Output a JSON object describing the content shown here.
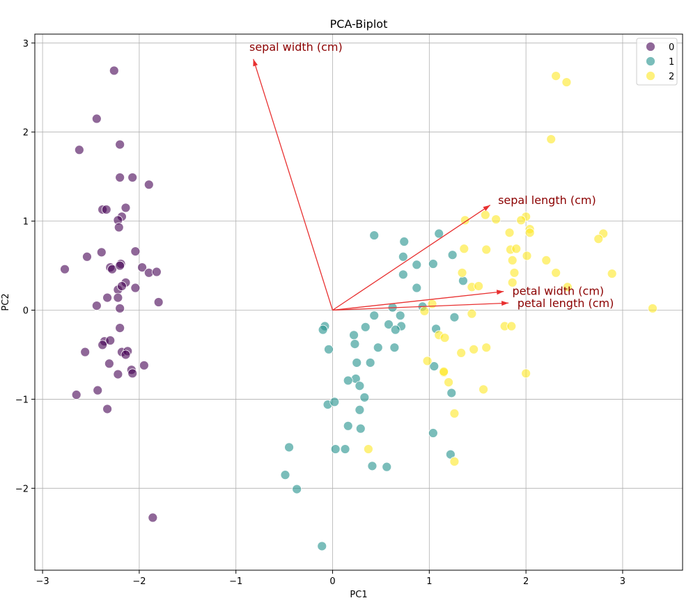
{
  "chart_data": {
    "type": "scatter",
    "title": "PCA-Biplot",
    "xlabel": "PC1",
    "ylabel": "PC2",
    "xlim": [
      -3.08,
      3.62
    ],
    "ylim": [
      -2.92,
      3.1
    ],
    "xticks": [
      -3,
      -2,
      -1,
      0,
      1,
      2,
      3
    ],
    "yticks": [
      -2,
      -1,
      0,
      1,
      2,
      3
    ],
    "grid": true,
    "legend_position": "top-right",
    "colors": {
      "arrow": "#e83030",
      "arrow_label": "#8b0000",
      "grid": "#b0b0b0"
    },
    "series": [
      {
        "name": "0",
        "color": "#440154",
        "points": [
          [
            -2.26,
            2.69
          ],
          [
            -2.44,
            2.15
          ],
          [
            -2.62,
            1.8
          ],
          [
            -2.2,
            1.86
          ],
          [
            -2.2,
            1.49
          ],
          [
            -2.07,
            1.49
          ],
          [
            -1.9,
            1.41
          ],
          [
            -2.38,
            1.13
          ],
          [
            -2.34,
            1.13
          ],
          [
            -2.14,
            1.15
          ],
          [
            -2.18,
            1.05
          ],
          [
            -2.22,
            1.01
          ],
          [
            -2.21,
            0.93
          ],
          [
            -2.04,
            0.66
          ],
          [
            -2.39,
            0.65
          ],
          [
            -2.54,
            0.6
          ],
          [
            -2.77,
            0.46
          ],
          [
            -2.3,
            0.48
          ],
          [
            -2.28,
            0.46
          ],
          [
            -2.19,
            0.52
          ],
          [
            -2.2,
            0.5
          ],
          [
            -1.97,
            0.48
          ],
          [
            -1.9,
            0.42
          ],
          [
            -1.82,
            0.43
          ],
          [
            -2.14,
            0.31
          ],
          [
            -2.22,
            0.23
          ],
          [
            -2.18,
            0.27
          ],
          [
            -2.04,
            0.25
          ],
          [
            -2.22,
            0.14
          ],
          [
            -2.33,
            0.14
          ],
          [
            -1.8,
            0.09
          ],
          [
            -2.44,
            0.05
          ],
          [
            -2.2,
            0.02
          ],
          [
            -2.2,
            -0.2
          ],
          [
            -2.36,
            -0.35
          ],
          [
            -2.3,
            -0.34
          ],
          [
            -2.38,
            -0.39
          ],
          [
            -2.56,
            -0.47
          ],
          [
            -2.18,
            -0.47
          ],
          [
            -2.12,
            -0.46
          ],
          [
            -2.14,
            -0.5
          ],
          [
            -1.95,
            -0.62
          ],
          [
            -2.31,
            -0.6
          ],
          [
            -2.08,
            -0.67
          ],
          [
            -2.22,
            -0.72
          ],
          [
            -2.07,
            -0.71
          ],
          [
            -2.43,
            -0.9
          ],
          [
            -2.65,
            -0.95
          ],
          [
            -2.33,
            -1.11
          ],
          [
            -1.86,
            -2.33
          ]
        ]
      },
      {
        "name": "1",
        "color": "#21918c",
        "points": [
          [
            0.43,
            0.84
          ],
          [
            1.1,
            0.86
          ],
          [
            0.74,
            0.77
          ],
          [
            1.24,
            0.62
          ],
          [
            0.73,
            0.6
          ],
          [
            0.87,
            0.51
          ],
          [
            1.04,
            0.52
          ],
          [
            0.73,
            0.4
          ],
          [
            1.35,
            0.33
          ],
          [
            0.87,
            0.25
          ],
          [
            0.62,
            0.03
          ],
          [
            0.93,
            0.04
          ],
          [
            0.43,
            -0.06
          ],
          [
            0.7,
            -0.06
          ],
          [
            1.26,
            -0.08
          ],
          [
            0.58,
            -0.16
          ],
          [
            0.71,
            -0.18
          ],
          [
            -0.08,
            -0.18
          ],
          [
            0.34,
            -0.19
          ],
          [
            1.07,
            -0.21
          ],
          [
            -0.1,
            -0.22
          ],
          [
            0.65,
            -0.22
          ],
          [
            0.22,
            -0.28
          ],
          [
            0.23,
            -0.38
          ],
          [
            0.47,
            -0.42
          ],
          [
            0.64,
            -0.42
          ],
          [
            -0.04,
            -0.44
          ],
          [
            0.25,
            -0.59
          ],
          [
            0.39,
            -0.59
          ],
          [
            1.05,
            -0.63
          ],
          [
            0.24,
            -0.77
          ],
          [
            0.16,
            -0.79
          ],
          [
            0.28,
            -0.85
          ],
          [
            1.23,
            -0.93
          ],
          [
            0.33,
            -0.98
          ],
          [
            -0.05,
            -1.06
          ],
          [
            0.02,
            -1.03
          ],
          [
            0.28,
            -1.12
          ],
          [
            0.16,
            -1.3
          ],
          [
            0.29,
            -1.33
          ],
          [
            1.04,
            -1.38
          ],
          [
            -0.45,
            -1.54
          ],
          [
            0.03,
            -1.56
          ],
          [
            0.13,
            -1.56
          ],
          [
            1.22,
            -1.62
          ],
          [
            0.41,
            -1.75
          ],
          [
            0.56,
            -1.76
          ],
          [
            -0.49,
            -1.85
          ],
          [
            -0.37,
            -2.01
          ],
          [
            -0.11,
            -2.65
          ]
        ]
      },
      {
        "name": "2",
        "color": "#fde725",
        "points": [
          [
            2.31,
            2.63
          ],
          [
            2.42,
            2.56
          ],
          [
            2.26,
            1.92
          ],
          [
            1.58,
            1.07
          ],
          [
            1.37,
            1.01
          ],
          [
            1.69,
            1.02
          ],
          [
            2.0,
            1.05
          ],
          [
            1.95,
            1.01
          ],
          [
            2.04,
            0.91
          ],
          [
            1.83,
            0.87
          ],
          [
            2.04,
            0.87
          ],
          [
            2.8,
            0.86
          ],
          [
            2.75,
            0.8
          ],
          [
            1.36,
            0.69
          ],
          [
            1.59,
            0.68
          ],
          [
            1.84,
            0.68
          ],
          [
            1.9,
            0.69
          ],
          [
            2.01,
            0.61
          ],
          [
            1.86,
            0.56
          ],
          [
            2.21,
            0.56
          ],
          [
            1.34,
            0.42
          ],
          [
            1.88,
            0.42
          ],
          [
            2.31,
            0.42
          ],
          [
            2.89,
            0.41
          ],
          [
            1.86,
            0.31
          ],
          [
            1.44,
            0.26
          ],
          [
            1.51,
            0.27
          ],
          [
            2.43,
            0.26
          ],
          [
            1.03,
            0.07
          ],
          [
            0.95,
            -0.01
          ],
          [
            3.31,
            0.02
          ],
          [
            1.44,
            -0.04
          ],
          [
            1.78,
            -0.18
          ],
          [
            1.85,
            -0.18
          ],
          [
            1.1,
            -0.28
          ],
          [
            1.16,
            -0.31
          ],
          [
            1.59,
            -0.42
          ],
          [
            1.46,
            -0.44
          ],
          [
            1.33,
            -0.48
          ],
          [
            0.98,
            -0.57
          ],
          [
            1.15,
            -0.7
          ],
          [
            2.0,
            -0.71
          ],
          [
            1.15,
            -0.69
          ],
          [
            1.2,
            -0.81
          ],
          [
            1.56,
            -0.89
          ],
          [
            1.26,
            -1.16
          ],
          [
            0.37,
            -1.56
          ],
          [
            1.26,
            -1.7
          ]
        ]
      }
    ],
    "loadings": [
      {
        "name": "sepal length (cm)",
        "x": 1.63,
        "y": 1.18
      },
      {
        "name": "sepal width (cm)",
        "x": -0.82,
        "y": 2.82
      },
      {
        "name": "petal length (cm)",
        "x": 1.82,
        "y": 0.08
      },
      {
        "name": "petal width (cm)",
        "x": 1.77,
        "y": 0.21
      }
    ]
  }
}
